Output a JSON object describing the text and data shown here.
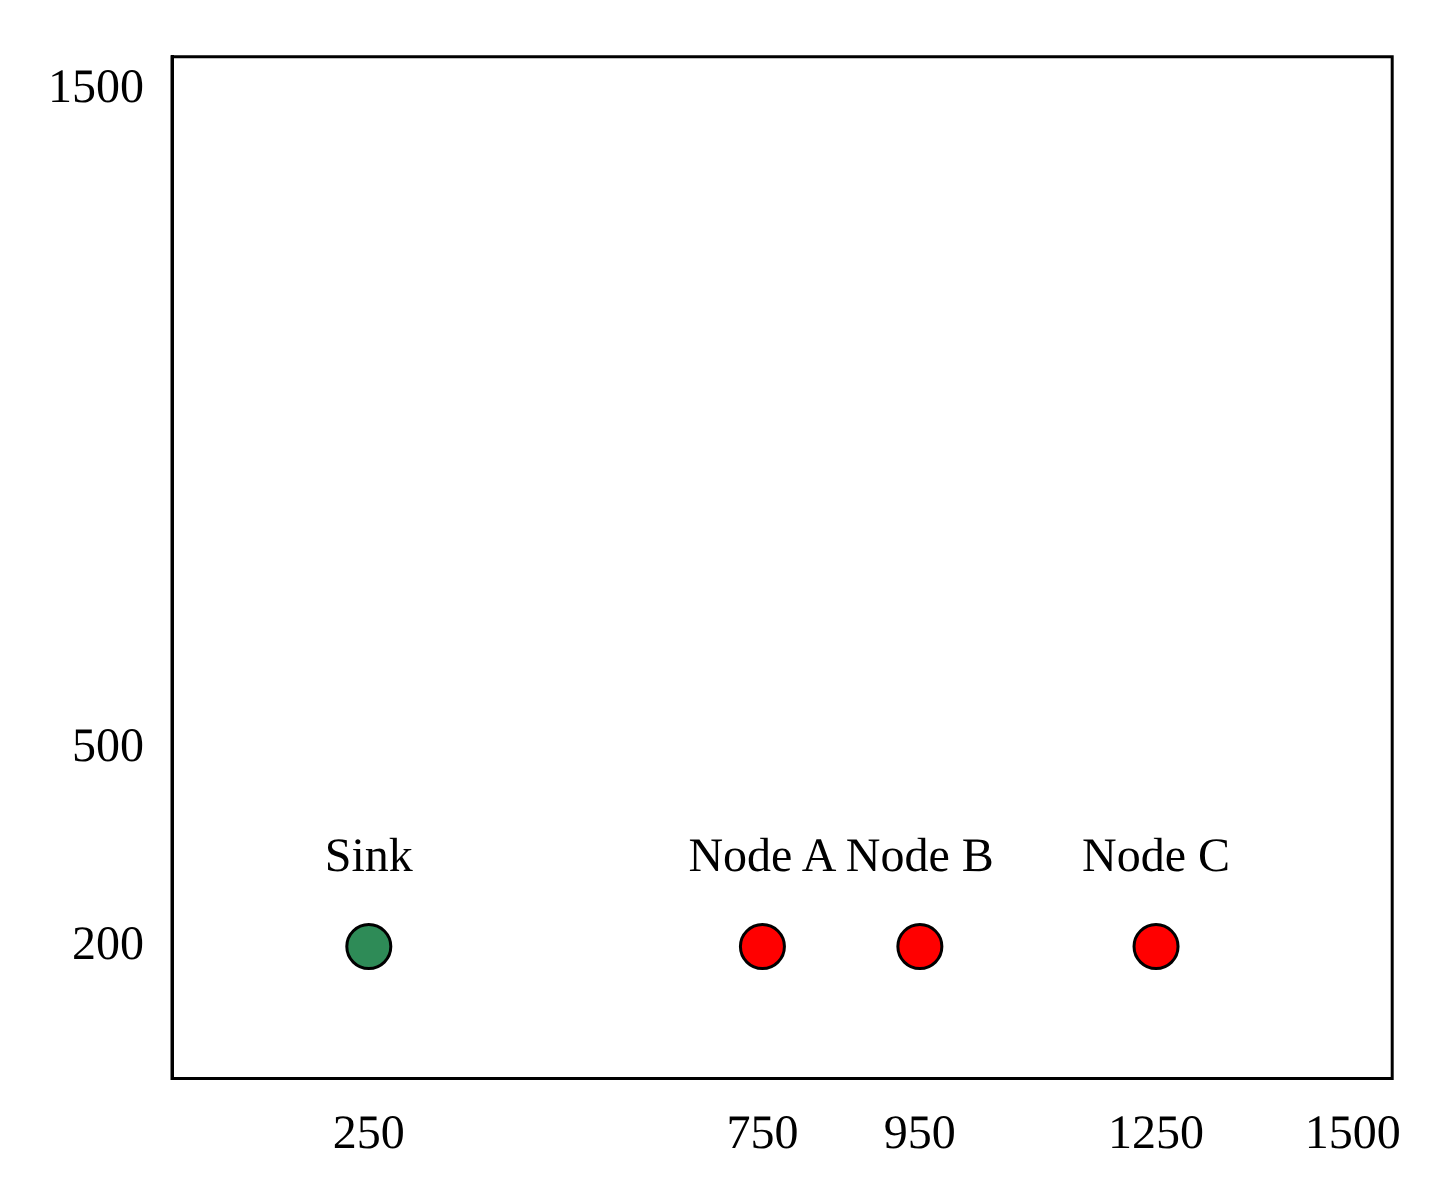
{
  "chart_data": {
    "type": "scatter",
    "x": [
      250,
      750,
      950,
      1250
    ],
    "values": [
      200,
      200,
      200,
      200
    ],
    "colors": [
      "#2e8b57",
      "#ff0000",
      "#ff0000",
      "#ff0000"
    ],
    "xlim": [
      0,
      1550
    ],
    "ylim": [
      0,
      1550
    ],
    "xticks": [
      250,
      750,
      950,
      1250,
      1500
    ],
    "yticks": [
      200,
      500,
      1500
    ],
    "marker": "circle",
    "grid": false,
    "legend": false,
    "annotations": [
      {
        "text": "Sink",
        "x": 250,
        "y": 200
      },
      {
        "text": "Node A",
        "x": 750,
        "y": 200
      },
      {
        "text": "Node B",
        "x": 950,
        "y": 200
      },
      {
        "text": "Node C",
        "x": 1250,
        "y": 200
      }
    ]
  }
}
